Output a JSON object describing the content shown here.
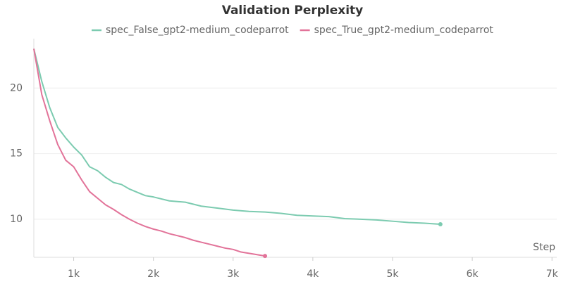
{
  "chart_data": {
    "type": "line",
    "title": "Validation Perplexity",
    "x_label": "Step",
    "xlim": [
      500,
      7060
    ],
    "ylim": [
      7.1,
      23.5
    ],
    "xticks": [
      {
        "value": 1000,
        "label": "1k"
      },
      {
        "value": 2000,
        "label": "2k"
      },
      {
        "value": 3000,
        "label": "3k"
      },
      {
        "value": 4000,
        "label": "4k"
      },
      {
        "value": 5000,
        "label": "5k"
      },
      {
        "value": 6000,
        "label": "6k"
      },
      {
        "value": 7000,
        "label": "7k"
      }
    ],
    "yticks": [
      10,
      15,
      20
    ],
    "grid": true,
    "legend": "top",
    "series": [
      {
        "name": "spec_False_gpt2-medium_codeparrot",
        "color": "#7ccbb0",
        "x": [
          500,
          600,
          700,
          800,
          900,
          1000,
          1100,
          1200,
          1300,
          1400,
          1500,
          1600,
          1700,
          1800,
          1900,
          2000,
          2200,
          2400,
          2600,
          2800,
          3000,
          3200,
          3400,
          3600,
          3800,
          4000,
          4200,
          4400,
          4600,
          4800,
          5000,
          5200,
          5400,
          5600
        ],
        "values": [
          23.0,
          20.5,
          18.5,
          17.0,
          16.2,
          15.5,
          14.9,
          14.0,
          13.7,
          13.2,
          12.8,
          12.65,
          12.3,
          12.05,
          11.8,
          11.7,
          11.4,
          11.3,
          11.0,
          10.85,
          10.7,
          10.6,
          10.55,
          10.45,
          10.3,
          10.25,
          10.2,
          10.05,
          10.0,
          9.95,
          9.85,
          9.75,
          9.7,
          9.62
        ]
      },
      {
        "name": "spec_True_gpt2-medium_codeparrot",
        "color": "#e27399",
        "x": [
          500,
          600,
          700,
          800,
          900,
          1000,
          1100,
          1200,
          1300,
          1400,
          1500,
          1600,
          1700,
          1800,
          1900,
          2000,
          2100,
          2200,
          2300,
          2400,
          2500,
          2600,
          2700,
          2800,
          2900,
          3000,
          3100,
          3200,
          3300,
          3400
        ],
        "values": [
          23.0,
          19.5,
          17.5,
          15.7,
          14.5,
          14.0,
          13.0,
          12.1,
          11.6,
          11.1,
          10.75,
          10.35,
          10.0,
          9.7,
          9.45,
          9.25,
          9.1,
          8.9,
          8.75,
          8.6,
          8.4,
          8.25,
          8.1,
          7.95,
          7.8,
          7.7,
          7.5,
          7.4,
          7.3,
          7.2
        ]
      }
    ]
  }
}
